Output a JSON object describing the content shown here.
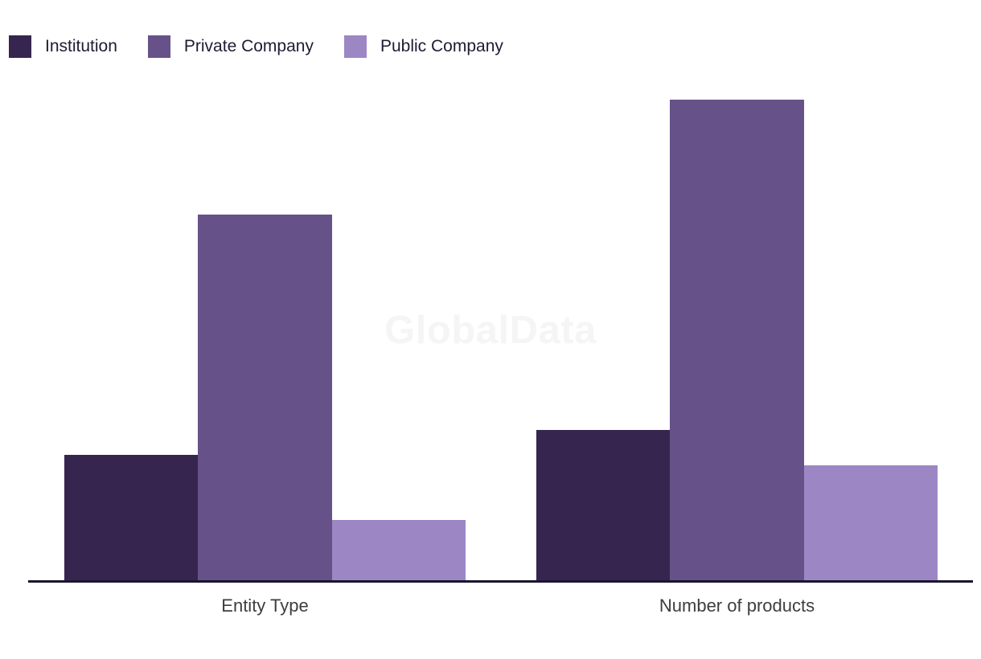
{
  "watermark": "GlobalData",
  "chart_data": {
    "type": "bar",
    "categories": [
      "Entity Type",
      "Number of products"
    ],
    "series": [
      {
        "name": "Institution",
        "color": "#36254F",
        "values": [
          25,
          30
        ]
      },
      {
        "name": "Private Company",
        "color": "#675189",
        "values": [
          73,
          96
        ]
      },
      {
        "name": "Public Company",
        "color": "#9C87C4",
        "values": [
          12,
          23
        ]
      }
    ],
    "ylim": [
      0,
      100
    ],
    "grid": false,
    "y_axis_visible": false,
    "legend_position": "top-left",
    "note": "No y-axis or data labels shown; values estimated from bar heights as percent of plot height",
    "style": {
      "axis_line_color": "#1A1530",
      "legend_text_color": "#1F1C33",
      "category_label_color": "#3D3D3D",
      "watermark_color": "#F5F5F5",
      "background": "#FFFFFF"
    }
  }
}
